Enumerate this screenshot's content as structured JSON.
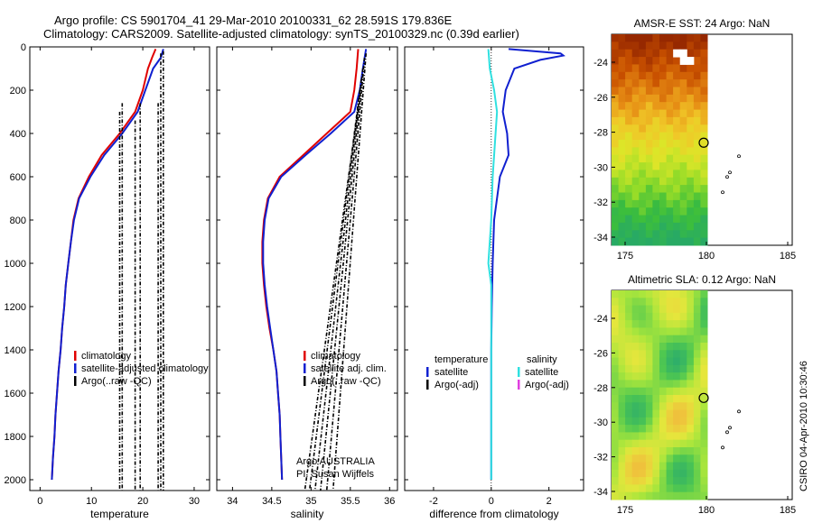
{
  "title_line1": "Argo profile: CS 5901704_41 29-Mar-2010 20100331_62 28.591S 179.836E",
  "title_line2": "Climatology: CARS2009. Satellite-adjusted climatology: synTS_20100329.nc (0.39d earlier)",
  "side_credit": "CSIRO 04-Apr-2010 10:30:46",
  "credit_line1": "Argo AUSTRALIA",
  "credit_line2": "PI: Susan Wijffels",
  "colors": {
    "clim": "#e00000",
    "sat": "#1020d0",
    "argo": "#000000",
    "cyan": "#30e0e0",
    "magenta": "#e040e0"
  },
  "chart_data": [
    {
      "type": "line",
      "id": "temperature",
      "xlabel": "temperature",
      "ylabel": "",
      "xlim": [
        -2,
        33
      ],
      "ylim": [
        2050,
        0
      ],
      "xticks": [
        0,
        10,
        20,
        30
      ],
      "yticks": [
        0,
        200,
        400,
        600,
        800,
        1000,
        1200,
        1400,
        1600,
        1800,
        2000
      ],
      "legend": [
        "climatology",
        "satellite-adjusted climatology",
        "Argo(..raw -QC)"
      ],
      "series": [
        {
          "name": "climatology",
          "color": "#e00000",
          "points": [
            [
              22.5,
              10
            ],
            [
              21.8,
              50
            ],
            [
              21,
              100
            ],
            [
              20,
              200
            ],
            [
              18.5,
              300
            ],
            [
              15.5,
              400
            ],
            [
              12,
              500
            ],
            [
              9.5,
              600
            ],
            [
              7.5,
              700
            ],
            [
              6.5,
              800
            ],
            [
              6,
              900
            ],
            [
              5.5,
              1000
            ],
            [
              5,
              1100
            ],
            [
              4.7,
              1200
            ],
            [
              4.3,
              1300
            ],
            [
              4,
              1400
            ],
            [
              3.6,
              1500
            ],
            [
              3.3,
              1600
            ],
            [
              3,
              1700
            ],
            [
              2.8,
              1800
            ],
            [
              2.5,
              1900
            ],
            [
              2.3,
              2000
            ]
          ]
        },
        {
          "name": "satellite",
          "color": "#1020d0",
          "points": [
            [
              24,
              10
            ],
            [
              23.5,
              50
            ],
            [
              22,
              100
            ],
            [
              20.5,
              200
            ],
            [
              19,
              300
            ],
            [
              16,
              400
            ],
            [
              12.5,
              500
            ],
            [
              9.8,
              600
            ],
            [
              7.6,
              700
            ],
            [
              6.6,
              800
            ],
            [
              6,
              900
            ],
            [
              5.5,
              1000
            ],
            [
              5,
              1100
            ],
            [
              4.7,
              1200
            ],
            [
              4.3,
              1300
            ],
            [
              4,
              1400
            ],
            [
              3.6,
              1500
            ],
            [
              3.3,
              1600
            ],
            [
              3,
              1700
            ],
            [
              2.8,
              1800
            ],
            [
              2.5,
              1900
            ],
            [
              2.3,
              2000
            ]
          ]
        },
        {
          "name": "argo1",
          "color": "#000000",
          "dash": true,
          "points": [
            [
              24,
              20
            ],
            [
              24,
              2050
            ]
          ]
        },
        {
          "name": "argo2",
          "color": "#000000",
          "dash": true,
          "points": [
            [
              23.5,
              30
            ],
            [
              23.5,
              2050
            ]
          ]
        },
        {
          "name": "argo3",
          "color": "#000000",
          "dash": true,
          "points": [
            [
              23,
              260
            ],
            [
              23,
              2050
            ]
          ]
        },
        {
          "name": "argo4",
          "color": "#000000",
          "dash": true,
          "points": [
            [
              19.5,
              260
            ],
            [
              19.5,
              2050
            ]
          ]
        },
        {
          "name": "argo5",
          "color": "#000000",
          "dash": true,
          "points": [
            [
              18.5,
              340
            ],
            [
              18.5,
              2050
            ]
          ]
        },
        {
          "name": "argo6",
          "color": "#000000",
          "dash": true,
          "points": [
            [
              16,
              260
            ],
            [
              16,
              2050
            ]
          ]
        },
        {
          "name": "argo7",
          "color": "#000000",
          "dash": true,
          "points": [
            [
              15.5,
              300
            ],
            [
              15.5,
              2050
            ]
          ]
        }
      ]
    },
    {
      "type": "line",
      "id": "salinity",
      "xlabel": "salinity",
      "ylabel": "",
      "xlim": [
        33.8,
        36.1
      ],
      "ylim": [
        2050,
        0
      ],
      "xticks": [
        34,
        34.5,
        35,
        35.5,
        36
      ],
      "xtick_labels": [
        "34",
        "34.5",
        "35",
        "35.5",
        "36"
      ],
      "legend": [
        "climatology",
        "satellite adj. clim.",
        "Argo(..raw -QC)"
      ],
      "series": [
        {
          "name": "climatology",
          "color": "#e00000",
          "points": [
            [
              35.6,
              10
            ],
            [
              35.58,
              100
            ],
            [
              35.55,
              200
            ],
            [
              35.5,
              300
            ],
            [
              35.2,
              400
            ],
            [
              34.9,
              500
            ],
            [
              34.6,
              600
            ],
            [
              34.45,
              700
            ],
            [
              34.4,
              800
            ],
            [
              34.38,
              900
            ],
            [
              34.38,
              1000
            ],
            [
              34.4,
              1100
            ],
            [
              34.43,
              1200
            ],
            [
              34.47,
              1300
            ],
            [
              34.52,
              1400
            ],
            [
              34.56,
              1500
            ],
            [
              34.58,
              1600
            ],
            [
              34.6,
              1700
            ],
            [
              34.61,
              1800
            ],
            [
              34.62,
              1900
            ],
            [
              34.63,
              2000
            ]
          ]
        },
        {
          "name": "satellite",
          "color": "#1020d0",
          "points": [
            [
              35.7,
              10
            ],
            [
              35.66,
              100
            ],
            [
              35.62,
              200
            ],
            [
              35.55,
              300
            ],
            [
              35.25,
              400
            ],
            [
              34.93,
              500
            ],
            [
              34.62,
              600
            ],
            [
              34.46,
              700
            ],
            [
              34.41,
              800
            ],
            [
              34.39,
              900
            ],
            [
              34.39,
              1000
            ],
            [
              34.41,
              1100
            ],
            [
              34.44,
              1200
            ],
            [
              34.48,
              1300
            ],
            [
              34.52,
              1400
            ],
            [
              34.56,
              1500
            ],
            [
              34.58,
              1600
            ],
            [
              34.6,
              1700
            ],
            [
              34.61,
              1800
            ],
            [
              34.62,
              1900
            ],
            [
              34.63,
              2000
            ]
          ]
        },
        {
          "name": "argo1",
          "color": "#000000",
          "dash": true,
          "points": [
            [
              35.6,
              280
            ],
            [
              34.92,
              2050
            ]
          ]
        },
        {
          "name": "argo2",
          "color": "#000000",
          "dash": true,
          "points": [
            [
              35.62,
              200
            ],
            [
              34.98,
              2050
            ]
          ]
        },
        {
          "name": "argo3",
          "color": "#000000",
          "dash": true,
          "points": [
            [
              35.64,
              150
            ],
            [
              35.05,
              2050
            ]
          ]
        },
        {
          "name": "argo4",
          "color": "#000000",
          "dash": true,
          "points": [
            [
              35.66,
              100
            ],
            [
              35.12,
              2050
            ]
          ]
        },
        {
          "name": "argo5",
          "color": "#000000",
          "dash": true,
          "points": [
            [
              35.68,
              50
            ],
            [
              35.2,
              2050
            ]
          ]
        },
        {
          "name": "argo6",
          "color": "#000000",
          "dash": true,
          "points": [
            [
              35.7,
              30
            ],
            [
              35.28,
              2050
            ]
          ]
        }
      ]
    },
    {
      "type": "line",
      "id": "difference",
      "xlabel": "difference from climatology",
      "ylabel": "",
      "xlim": [
        -3,
        3.2
      ],
      "ylim": [
        2050,
        0
      ],
      "xticks": [
        -2,
        0,
        2
      ],
      "legend_left_title": "temperature",
      "legend_left": [
        "satellite",
        "Argo(-adj)"
      ],
      "legend_right_title": "salinity",
      "legend_right": [
        "satellite",
        "Argo(-adj)"
      ],
      "series": [
        {
          "name": "temp-satellite",
          "color": "#1020d0",
          "points": [
            [
              0.6,
              10
            ],
            [
              2.4,
              30
            ],
            [
              2.5,
              40
            ],
            [
              1.7,
              60
            ],
            [
              0.8,
              100
            ],
            [
              0.5,
              200
            ],
            [
              0.4,
              300
            ],
            [
              0.55,
              400
            ],
            [
              0.6,
              500
            ],
            [
              0.3,
              600
            ],
            [
              0.2,
              700
            ],
            [
              0.1,
              800
            ],
            [
              0.05,
              1000
            ],
            [
              0.02,
              1200
            ],
            [
              0,
              1400
            ],
            [
              0,
              2000
            ]
          ]
        },
        {
          "name": "sal-satellite",
          "color": "#30e0e0",
          "points": [
            [
              -0.1,
              10
            ],
            [
              -0.05,
              100
            ],
            [
              0.1,
              200
            ],
            [
              0.2,
              300
            ],
            [
              0.15,
              400
            ],
            [
              0.1,
              500
            ],
            [
              0.05,
              600
            ],
            [
              0,
              800
            ],
            [
              -0.1,
              1000
            ],
            [
              0,
              1100
            ],
            [
              0,
              1400
            ],
            [
              0,
              2000
            ]
          ]
        }
      ]
    }
  ],
  "maps": [
    {
      "id": "sst",
      "title": "AMSR-E SST: 24  Argo: NaN",
      "xticks": [
        "175",
        "180",
        "185"
      ],
      "yticks": [
        "-24",
        "-26",
        "-28",
        "-30",
        "-32",
        "-34"
      ]
    },
    {
      "id": "sla",
      "title": "Altimetric SLA: 0.12  Argo: NaN",
      "xticks": [
        "175",
        "180",
        "185"
      ],
      "yticks": [
        "-24",
        "-26",
        "-28",
        "-30",
        "-32",
        "-34"
      ]
    }
  ]
}
